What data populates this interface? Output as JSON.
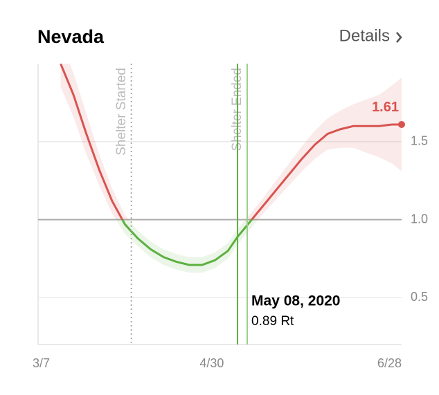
{
  "header": {
    "title": "Nevada",
    "link": "Details"
  },
  "chart_data": {
    "type": "line",
    "x": [
      "3/14",
      "3/18",
      "3/22",
      "3/26",
      "3/30",
      "4/3",
      "4/7",
      "4/11",
      "4/15",
      "4/19",
      "4/23",
      "4/27",
      "5/1",
      "5/5",
      "5/8",
      "5/12",
      "5/16",
      "5/20",
      "5/24",
      "5/28",
      "6/1",
      "6/5",
      "6/9",
      "6/13",
      "6/17",
      "6/21",
      "6/25",
      "6/28"
    ],
    "values": [
      2.0,
      1.8,
      1.55,
      1.32,
      1.12,
      0.97,
      0.88,
      0.81,
      0.76,
      0.73,
      0.71,
      0.71,
      0.74,
      0.8,
      0.89,
      0.99,
      1.09,
      1.19,
      1.29,
      1.39,
      1.48,
      1.55,
      1.58,
      1.6,
      1.6,
      1.6,
      1.61,
      1.61
    ],
    "upper": [
      2.15,
      1.94,
      1.68,
      1.42,
      1.2,
      1.03,
      0.93,
      0.86,
      0.81,
      0.78,
      0.76,
      0.76,
      0.79,
      0.85,
      0.94,
      1.04,
      1.14,
      1.25,
      1.36,
      1.47,
      1.57,
      1.65,
      1.7,
      1.74,
      1.77,
      1.8,
      1.86,
      1.91
    ],
    "lower": [
      1.85,
      1.66,
      1.42,
      1.22,
      1.04,
      0.91,
      0.83,
      0.76,
      0.71,
      0.68,
      0.66,
      0.66,
      0.69,
      0.75,
      0.84,
      0.94,
      1.04,
      1.13,
      1.22,
      1.31,
      1.39,
      1.45,
      1.46,
      1.46,
      1.43,
      1.4,
      1.36,
      1.31
    ],
    "threshold": 1,
    "color_above": "#d9534f",
    "color_below": "#5cb040",
    "xlim": [
      "3/7",
      "6/28"
    ],
    "xticks": [
      "3/7",
      "4/30",
      "6/28"
    ],
    "ylim": [
      0.2,
      2.0
    ],
    "yticks": [
      0.5,
      {
        "value": 1,
        "label": "1.0"
      },
      1.5
    ],
    "grid": true,
    "annotations": [
      {
        "text": "Shelter Started",
        "x": "4/5"
      },
      {
        "text": "Shelter Ended",
        "x": "5/11"
      }
    ],
    "cursor": {
      "date_label": "May 08, 2020",
      "x": "5/8",
      "unit": "Rt"
    }
  }
}
